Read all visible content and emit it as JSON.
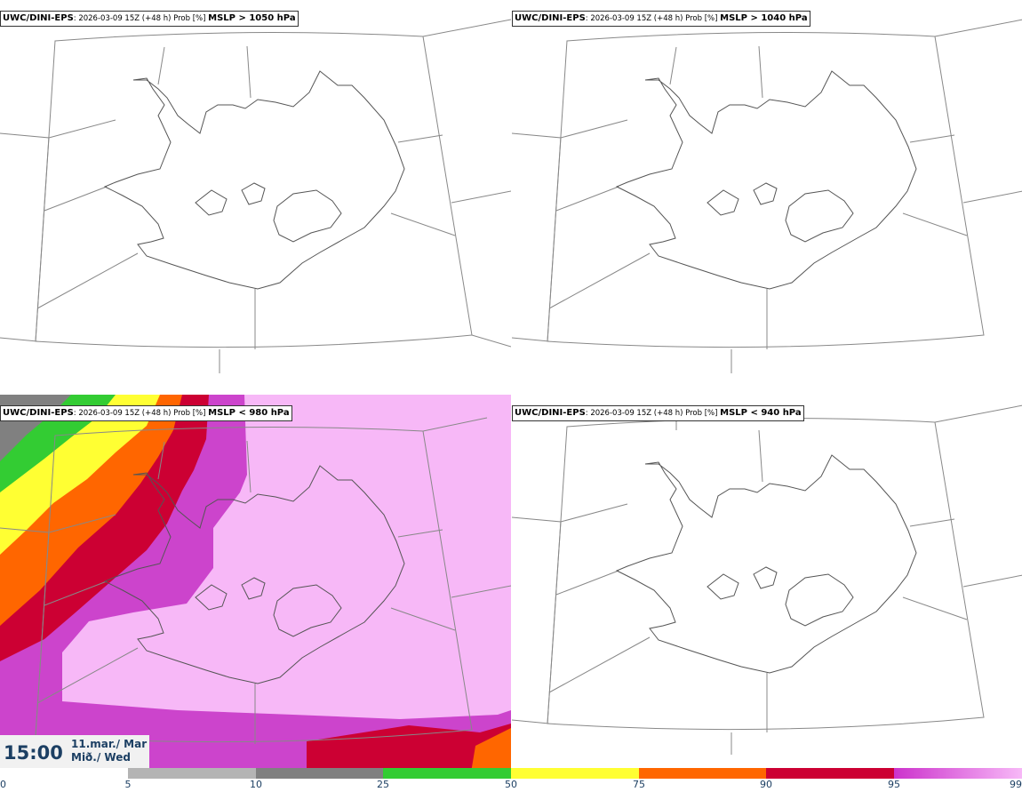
{
  "panels": [
    {
      "model": "UWC/DINI-EPS",
      "meta": ": 2026-03-09 15Z (+48 h) Prob [%] ",
      "threshold": "MSLP > 1050 hPa"
    },
    {
      "model": "UWC/DINI-EPS",
      "meta": ": 2026-03-09 15Z (+48 h) Prob [%] ",
      "threshold": "MSLP > 1040 hPa"
    },
    {
      "model": "UWC/DINI-EPS",
      "meta": ": 2026-03-09 15Z (+48 h) Prob [%] ",
      "threshold": "MSLP < 980 hPa"
    },
    {
      "model": "UWC/DINI-EPS",
      "meta": ": 2026-03-09 15Z (+48 h) Prob [%] ",
      "threshold": "MSLP < 940 hPa"
    }
  ],
  "valid_time": {
    "time": "15:00",
    "date_line1": "11.mar./ Mar",
    "date_line2": "Mið./ Wed"
  },
  "colorbar": {
    "ticks": [
      "0",
      "5",
      "10",
      "25",
      "50",
      "75",
      "90",
      "95",
      "99"
    ],
    "colors": [
      "#ffffff",
      "#b4b4b4",
      "#808080",
      "#33cc33",
      "#ffff33",
      "#ff6600",
      "#cc0033",
      "#cc33cc",
      "#f7b8f7"
    ]
  }
}
